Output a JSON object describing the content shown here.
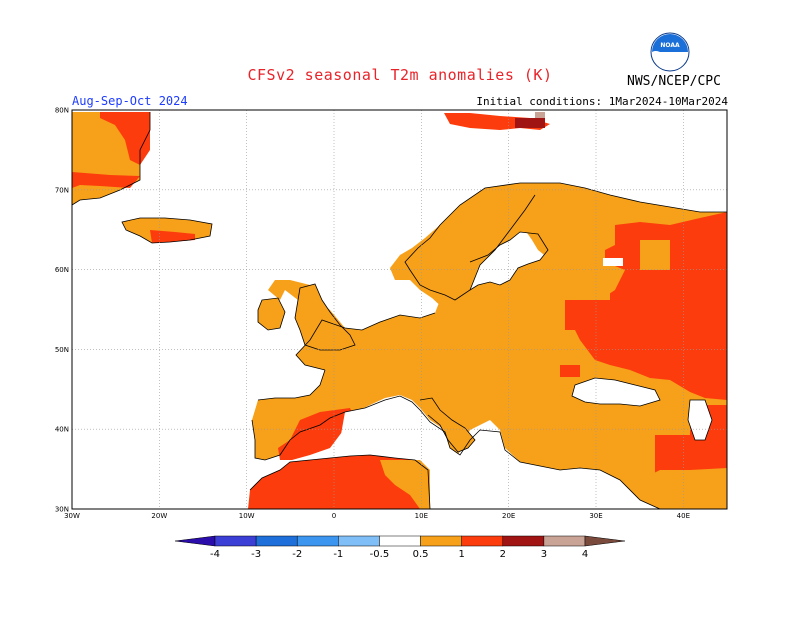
{
  "header": {
    "title": "CFSv2 seasonal T2m anomalies (K)",
    "organization": "NWS/NCEP/CPC",
    "logo_text": "NOAA",
    "season": "Aug-Sep-Oct 2024",
    "initial_conditions": "Initial conditions: 1Mar2024-10Mar2024"
  },
  "map": {
    "extent": {
      "lon_min": -30,
      "lon_max": 45,
      "lat_min": 30,
      "lat_max": 80
    },
    "lat_labels": [
      "80N",
      "70N",
      "60N",
      "50N",
      "40N",
      "30N"
    ],
    "lon_labels": [
      "30W",
      "20W",
      "10W",
      "0",
      "10E",
      "20E",
      "30E",
      "40E"
    ],
    "gridlines": true
  },
  "colorbar": {
    "tick_labels": [
      "-4",
      "-3",
      "-2",
      "-1",
      "-0.5",
      "0.5",
      "1",
      "2",
      "3",
      "4"
    ],
    "bins": [
      {
        "color": "#2b0dab"
      },
      {
        "color": "#3c3fd6"
      },
      {
        "color": "#1e6fd9"
      },
      {
        "color": "#3c96f0"
      },
      {
        "color": "#7fbef7"
      },
      {
        "color": "#ffffff"
      },
      {
        "color": "#f7a01a"
      },
      {
        "color": "#fc3c0c"
      },
      {
        "color": "#a01414"
      },
      {
        "color": "#c9a396"
      },
      {
        "color": "#7a4a3c"
      }
    ]
  },
  "legend_colors": {
    "moderate_warm": "#f7a01a",
    "strong_warm": "#fc3c0c",
    "very_strong_warm": "#a01414"
  }
}
